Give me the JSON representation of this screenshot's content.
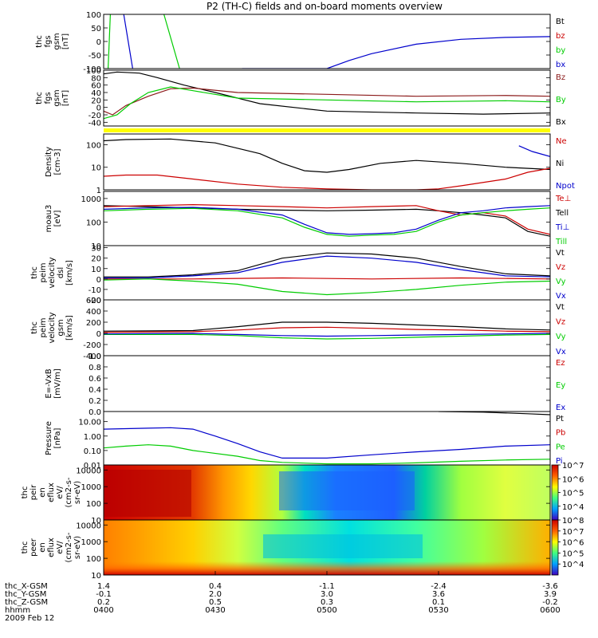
{
  "title": "P2 (TH-C) fields and on-board moments overview",
  "chart_data": [
    {
      "type": "line",
      "ylabel": [
        "thc",
        "fgs",
        "gsm",
        "[nT]"
      ],
      "ylim": [
        -100,
        100
      ],
      "yticks": [
        "100",
        "50",
        "0",
        "-50",
        "-100"
      ],
      "legend": [
        {
          "name": "Bt",
          "color": "#000000"
        },
        {
          "name": "bz",
          "color": "#cc0000"
        },
        {
          "name": "by",
          "color": "#00cc00"
        },
        {
          "name": "bx",
          "color": "#0000cc"
        }
      ],
      "series": [
        {
          "name": "bx",
          "color": "#0000cc",
          "x": [
            0.31,
            0.5,
            0.55,
            0.6,
            0.7,
            0.8,
            0.9,
            1.0
          ],
          "y": [
            -100,
            -100,
            -70,
            -45,
            -10,
            8,
            15,
            18
          ]
        },
        {
          "name": "by",
          "color": "#00cc00",
          "x": [
            0.01,
            0.015
          ],
          "y": [
            -100,
            100
          ]
        },
        {
          "name": "by",
          "color": "#00cc00",
          "x": [
            0.135,
            0.17
          ],
          "y": [
            100,
            -100
          ]
        },
        {
          "name": "bx",
          "color": "#0000cc",
          "x": [
            0.045,
            0.065
          ],
          "y": [
            100,
            -100
          ]
        }
      ]
    },
    {
      "type": "line",
      "ylabel": [
        "thc",
        "fgs",
        "gsm",
        "[nT]"
      ],
      "ylim": [
        -50,
        100
      ],
      "yticks": [
        "100",
        "80",
        "60",
        "40",
        "20",
        "0",
        "-20",
        "-40"
      ],
      "legend": [
        {
          "name": "Bz",
          "color": "#8b1a1a"
        },
        {
          "name": "By",
          "color": "#00cc00"
        },
        {
          "name": "Bx",
          "color": "#000000"
        }
      ],
      "series": [
        {
          "name": "Bx",
          "color": "#000000",
          "x": [
            0,
            0.03,
            0.08,
            0.12,
            0.18,
            0.25,
            0.35,
            0.5,
            0.7,
            0.85,
            1
          ],
          "y": [
            90,
            95,
            92,
            80,
            60,
            40,
            10,
            -10,
            -15,
            -18,
            -15
          ]
        },
        {
          "name": "Bz",
          "color": "#8b1a1a",
          "x": [
            0,
            0.02,
            0.05,
            0.1,
            0.15,
            0.2,
            0.3,
            0.5,
            0.7,
            0.9,
            1
          ],
          "y": [
            -10,
            -20,
            5,
            30,
            50,
            52,
            40,
            35,
            30,
            32,
            30
          ]
        },
        {
          "name": "By",
          "color": "#00cc00",
          "x": [
            0,
            0.03,
            0.06,
            0.1,
            0.15,
            0.2,
            0.3,
            0.5,
            0.7,
            0.9,
            1
          ],
          "y": [
            -30,
            -20,
            10,
            40,
            55,
            45,
            25,
            20,
            15,
            18,
            15
          ]
        }
      ]
    },
    {
      "type": "line",
      "ylabel": [
        "Density",
        "[cm-3]"
      ],
      "scale": "log",
      "ylim": [
        1,
        300
      ],
      "yticks": [
        "100",
        "10",
        "1"
      ],
      "legend": [
        {
          "name": "Ne",
          "color": "#cc0000"
        },
        {
          "name": "Ni",
          "color": "#000000"
        },
        {
          "name": "Npot",
          "color": "#0000cc"
        }
      ],
      "series": [
        {
          "name": "Ni",
          "color": "#000000",
          "x": [
            0,
            0.05,
            0.15,
            0.25,
            0.35,
            0.4,
            0.45,
            0.5,
            0.55,
            0.62,
            0.7,
            0.8,
            0.9,
            1
          ],
          "y": [
            150,
            170,
            180,
            120,
            40,
            15,
            7,
            6,
            8,
            15,
            20,
            15,
            10,
            8
          ]
        },
        {
          "name": "Ne",
          "color": "#cc0000",
          "x": [
            0,
            0.05,
            0.12,
            0.2,
            0.3,
            0.4,
            0.5,
            0.6,
            0.7,
            0.75,
            0.8,
            0.9,
            0.95,
            1
          ],
          "y": [
            4,
            4.5,
            4.5,
            3,
            1.8,
            1.3,
            1.1,
            1,
            1,
            1.1,
            1.5,
            3,
            6,
            9
          ]
        },
        {
          "name": "Npot",
          "color": "#0000cc",
          "x": [
            0.93,
            0.96,
            1
          ],
          "y": [
            90,
            50,
            30
          ]
        }
      ]
    },
    {
      "type": "line",
      "ylabel": [
        "moau3",
        "[eV]"
      ],
      "scale": "log",
      "ylim": [
        10,
        2000
      ],
      "yticks": [
        "1000",
        "100",
        "10"
      ],
      "legend": [
        {
          "name": "Te⊥",
          "color": "#cc0000"
        },
        {
          "name": "Tell",
          "color": "#000000"
        },
        {
          "name": "Ti⊥",
          "color": "#0000cc"
        },
        {
          "name": "Till",
          "color": "#00cc00"
        }
      ],
      "series": [
        {
          "name": "Tell",
          "color": "#000000",
          "x": [
            0,
            0.1,
            0.2,
            0.3,
            0.4,
            0.5,
            0.6,
            0.7,
            0.75,
            0.8,
            0.85,
            0.9,
            0.95,
            1
          ],
          "y": [
            500,
            450,
            400,
            350,
            320,
            300,
            320,
            350,
            300,
            250,
            200,
            150,
            40,
            25
          ]
        },
        {
          "name": "Te⊥",
          "color": "#cc0000",
          "x": [
            0,
            0.1,
            0.2,
            0.3,
            0.4,
            0.5,
            0.6,
            0.7,
            0.75,
            0.8,
            0.85,
            0.9,
            0.95,
            1
          ],
          "y": [
            450,
            500,
            550,
            500,
            450,
            400,
            450,
            500,
            300,
            200,
            250,
            180,
            50,
            30
          ]
        },
        {
          "name": "Ti⊥",
          "color": "#0000cc",
          "x": [
            0,
            0.1,
            0.2,
            0.3,
            0.4,
            0.45,
            0.5,
            0.55,
            0.6,
            0.65,
            0.7,
            0.75,
            0.8,
            0.85,
            0.9,
            0.95,
            1
          ],
          "y": [
            350,
            400,
            420,
            350,
            200,
            80,
            35,
            30,
            32,
            35,
            50,
            120,
            250,
            300,
            400,
            450,
            500
          ]
        },
        {
          "name": "Till",
          "color": "#00cc00",
          "x": [
            0,
            0.1,
            0.2,
            0.3,
            0.4,
            0.45,
            0.5,
            0.55,
            0.6,
            0.65,
            0.7,
            0.75,
            0.8,
            0.85,
            0.9,
            0.95,
            1
          ],
          "y": [
            300,
            350,
            380,
            300,
            150,
            60,
            30,
            25,
            28,
            30,
            40,
            100,
            200,
            250,
            300,
            350,
            400
          ]
        }
      ]
    },
    {
      "type": "line",
      "ylabel": [
        "thc",
        "peim",
        "velocity",
        "dsl",
        "[km/s]"
      ],
      "ylim": [
        -20,
        32
      ],
      "yticks": [
        "30",
        "20",
        "10",
        "0",
        "-10",
        "-20"
      ],
      "legend": [
        {
          "name": "Vt",
          "color": "#000000"
        },
        {
          "name": "Vz",
          "color": "#cc0000"
        },
        {
          "name": "Vy",
          "color": "#00cc00"
        },
        {
          "name": "Vx",
          "color": "#0000cc"
        }
      ],
      "series": [
        {
          "name": "Vt",
          "color": "#000000",
          "x": [
            0,
            0.1,
            0.2,
            0.3,
            0.4,
            0.5,
            0.6,
            0.7,
            0.8,
            0.9,
            1
          ],
          "y": [
            2,
            2,
            4,
            8,
            20,
            25,
            24,
            20,
            12,
            5,
            3
          ]
        },
        {
          "name": "Vx",
          "color": "#0000cc",
          "x": [
            0,
            0.1,
            0.2,
            0.3,
            0.4,
            0.5,
            0.6,
            0.7,
            0.8,
            0.9,
            1
          ],
          "y": [
            1,
            1,
            3,
            6,
            16,
            22,
            20,
            16,
            9,
            3,
            2
          ]
        },
        {
          "name": "Vz",
          "color": "#cc0000",
          "x": [
            0,
            0.2,
            0.4,
            0.6,
            0.8,
            1
          ],
          "y": [
            0,
            0,
            1,
            0,
            1,
            0
          ]
        },
        {
          "name": "Vy",
          "color": "#00cc00",
          "x": [
            0,
            0.1,
            0.2,
            0.3,
            0.4,
            0.5,
            0.6,
            0.7,
            0.8,
            0.9,
            1
          ],
          "y": [
            -1,
            0,
            -2,
            -5,
            -12,
            -15,
            -13,
            -10,
            -6,
            -3,
            -2
          ]
        }
      ]
    },
    {
      "type": "line",
      "ylabel": [
        "thc",
        "peim",
        "velocity",
        "gsm",
        "[km/s]"
      ],
      "ylim": [
        -400,
        600
      ],
      "yticks": [
        "600",
        "400",
        "200",
        "0",
        "-200",
        "-400"
      ],
      "legend": [
        {
          "name": "Vt",
          "color": "#000000"
        },
        {
          "name": "Vz",
          "color": "#cc0000"
        },
        {
          "name": "Vy",
          "color": "#00cc00"
        },
        {
          "name": "Vx",
          "color": "#0000cc"
        }
      ],
      "series": [
        {
          "name": "Vt",
          "color": "#000000",
          "x": [
            0,
            0.2,
            0.3,
            0.4,
            0.5,
            0.6,
            0.7,
            0.8,
            0.9,
            1
          ],
          "y": [
            40,
            50,
            120,
            200,
            200,
            180,
            150,
            120,
            80,
            60
          ]
        },
        {
          "name": "Vz",
          "color": "#cc0000",
          "x": [
            0,
            0.2,
            0.3,
            0.4,
            0.5,
            0.6,
            0.7,
            0.8,
            0.9,
            1
          ],
          "y": [
            20,
            30,
            60,
            100,
            110,
            90,
            70,
            60,
            40,
            30
          ]
        },
        {
          "name": "Vy",
          "color": "#00cc00",
          "x": [
            0,
            0.2,
            0.3,
            0.4,
            0.5,
            0.6,
            0.7,
            0.8,
            0.9,
            1
          ],
          "y": [
            -20,
            -20,
            -40,
            -80,
            -100,
            -90,
            -70,
            -50,
            -30,
            -20
          ]
        },
        {
          "name": "Vx",
          "color": "#0000cc",
          "x": [
            0,
            0.2,
            0.3,
            0.4,
            0.5,
            0.6,
            0.7,
            0.8,
            0.9,
            1
          ],
          "y": [
            -10,
            0,
            -20,
            -40,
            -50,
            -40,
            -30,
            -20,
            -10,
            0
          ]
        }
      ]
    },
    {
      "type": "line",
      "ylabel": [
        "E=-VxB",
        "[mV/m]"
      ],
      "ylim": [
        0,
        1
      ],
      "yticks": [
        "1.0",
        "0.8",
        "0.6",
        "0.4",
        "0.2",
        "0.0"
      ],
      "legend": [
        {
          "name": "Ez",
          "color": "#cc0000"
        },
        {
          "name": "Ey",
          "color": "#00cc00"
        },
        {
          "name": "Ex",
          "color": "#0000cc"
        }
      ],
      "series": []
    },
    {
      "type": "line",
      "ylabel": [
        "Pressure",
        "[nPa]"
      ],
      "scale": "log",
      "ylim": [
        0.01,
        50
      ],
      "yticks": [
        "10.00",
        "1.00",
        "0.10",
        "0.01"
      ],
      "legend": [
        {
          "name": "Pt",
          "color": "#000000"
        },
        {
          "name": "Pb",
          "color": "#cc0000"
        },
        {
          "name": "Pe",
          "color": "#00cc00"
        },
        {
          "name": "Pi",
          "color": "#0000cc"
        }
      ],
      "series": [
        {
          "name": "Pi",
          "color": "#0000cc",
          "x": [
            0,
            0.1,
            0.15,
            0.2,
            0.25,
            0.3,
            0.35,
            0.4,
            0.5,
            0.6,
            0.7,
            0.8,
            0.9,
            1
          ],
          "y": [
            3,
            3.5,
            3.8,
            3,
            1,
            0.3,
            0.08,
            0.03,
            0.03,
            0.05,
            0.08,
            0.12,
            0.2,
            0.25
          ]
        },
        {
          "name": "Pe",
          "color": "#00cc00",
          "x": [
            0,
            0.05,
            0.1,
            0.15,
            0.2,
            0.3,
            0.35,
            0.4,
            0.5,
            0.6,
            0.7,
            0.8,
            0.9,
            1
          ],
          "y": [
            0.15,
            0.2,
            0.25,
            0.2,
            0.1,
            0.04,
            0.02,
            0.015,
            0.012,
            0.012,
            0.014,
            0.018,
            0.022,
            0.025
          ]
        },
        {
          "name": "Pt",
          "color": "#000000",
          "x": [
            0.75,
            0.85,
            0.95,
            1
          ],
          "y": [
            50,
            45,
            35,
            30
          ]
        }
      ]
    },
    {
      "type": "heatmap",
      "ylabel": [
        "thc",
        "peir",
        "en",
        "eflux",
        "eV/",
        "(cm2-s-",
        "sr-eV)"
      ],
      "scale": "log",
      "ylim": [
        10,
        20000
      ],
      "yticks": [
        "10000",
        "1000",
        "100",
        "10"
      ],
      "colorbar": {
        "scale": "log",
        "min": 1000,
        "max": 10000000,
        "ticks": [
          "10^7",
          "10^6",
          "10^5",
          "10^4"
        ]
      }
    },
    {
      "type": "heatmap",
      "ylabel": [
        "thc",
        "peer",
        "en",
        "eflux",
        "eV/",
        "(cm2-s-",
        "sr-eV)"
      ],
      "scale": "log",
      "ylim": [
        10,
        20000
      ],
      "yticks": [
        "10000",
        "1000",
        "100",
        "10"
      ],
      "colorbar": {
        "scale": "log",
        "min": 1000,
        "max": 100000000,
        "ticks": [
          "10^8",
          "10^7",
          "10^6",
          "10^5",
          "10^4"
        ]
      }
    }
  ],
  "xaxis": {
    "rows": [
      {
        "label": "thc_X-GSM",
        "values": [
          "1.4",
          "0.4",
          "-1.1",
          "-2.4",
          "-3.6"
        ]
      },
      {
        "label": "thc_Y-GSM",
        "values": [
          "-0.1",
          "2.0",
          "3.0",
          "3.6",
          "3.9"
        ]
      },
      {
        "label": "thc_Z-GSM",
        "values": [
          "0.2",
          "0.5",
          "0.3",
          "0.1",
          "-0.2"
        ]
      },
      {
        "label": "hhmm",
        "values": [
          "0400",
          "0430",
          "0500",
          "0530",
          "0600"
        ]
      }
    ],
    "date": "2009 Feb 12"
  },
  "colors": {
    "axis": "#000000",
    "flag": "#ffff00"
  }
}
